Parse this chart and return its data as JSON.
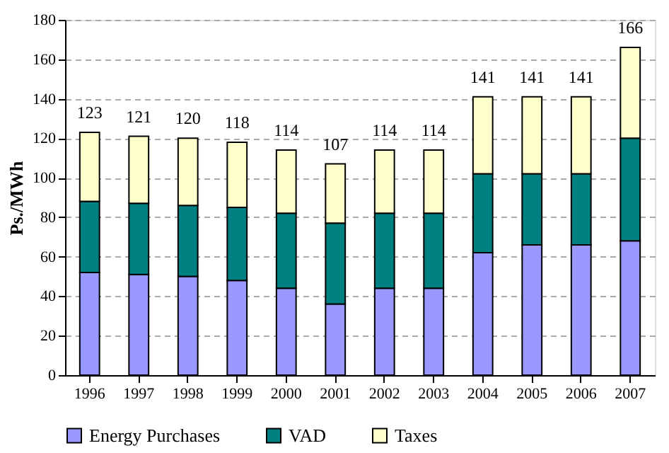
{
  "chart_data": {
    "type": "bar",
    "stacked": true,
    "ylabel": "Ps./MWh",
    "categories": [
      "1996",
      "1997",
      "1998",
      "1999",
      "2000",
      "2001",
      "2002",
      "2003",
      "2004",
      "2005",
      "2006",
      "2007"
    ],
    "series": [
      {
        "name": "Energy Purchases",
        "color": "#9999ff",
        "values": [
          52,
          51,
          50,
          48,
          44,
          36,
          44,
          44,
          62,
          66,
          66,
          68
        ]
      },
      {
        "name": "VAD",
        "color": "#008080",
        "values": [
          36,
          36,
          36,
          37,
          38,
          41,
          38,
          38,
          40,
          36,
          36,
          52
        ]
      },
      {
        "name": "Taxes",
        "color": "#ffffcc",
        "values": [
          35,
          34,
          34,
          33,
          32,
          30,
          32,
          32,
          39,
          39,
          39,
          46
        ]
      }
    ],
    "totals": [
      "123",
      "121",
      "120",
      "118",
      "114",
      "107",
      "114",
      "114",
      "141",
      "141",
      "141",
      "166"
    ],
    "ylim": [
      0,
      180
    ],
    "yticks": [
      0,
      20,
      40,
      60,
      80,
      100,
      120,
      140,
      160,
      180
    ],
    "grid": "y",
    "legend": "bottom"
  }
}
